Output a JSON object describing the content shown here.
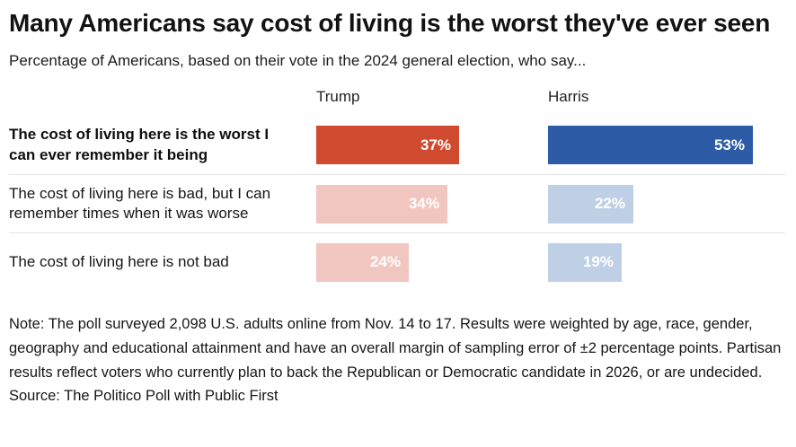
{
  "header": {
    "title": "Many Americans say cost of living is the worst they've ever seen",
    "subtitle": "Percentage of Americans, based on their vote in the 2024 general election, who say..."
  },
  "chart_data": {
    "type": "bar",
    "orientation": "horizontal",
    "unit": "%",
    "columns": [
      "Trump",
      "Harris"
    ],
    "categories": [
      "The cost of living here is the worst I can ever remember it being",
      "The cost of living here is bad, but I can remember times when it was worse",
      "The cost of living here is not bad"
    ],
    "series": [
      {
        "name": "Trump",
        "values": [
          37,
          34,
          24
        ]
      },
      {
        "name": "Harris",
        "values": [
          53,
          22,
          19
        ]
      }
    ],
    "emphasized_row": 0,
    "axis_range": [
      0,
      60
    ],
    "legend_position": "column-headers",
    "grid": false,
    "colors": {
      "trump_emphasis": "#cf4a2e",
      "trump_muted": "#f2c6c0",
      "harris_emphasis": "#2d5ba5",
      "harris_muted": "#bfd0e6",
      "bar_label": "#ffffff",
      "row_divider": "#e3e3e3"
    }
  },
  "footer": {
    "note": "Note: The poll surveyed 2,098 U.S. adults online from Nov. 14 to 17. Results were weighted by age, race, gender, geography and educational attainment and have an overall margin of sampling error of ±2 percentage points. Partisan results reflect voters who currently plan to back the Republican or Democratic candidate in 2026, or are undecided.",
    "source": "Source: The Politico Poll with Public First"
  }
}
